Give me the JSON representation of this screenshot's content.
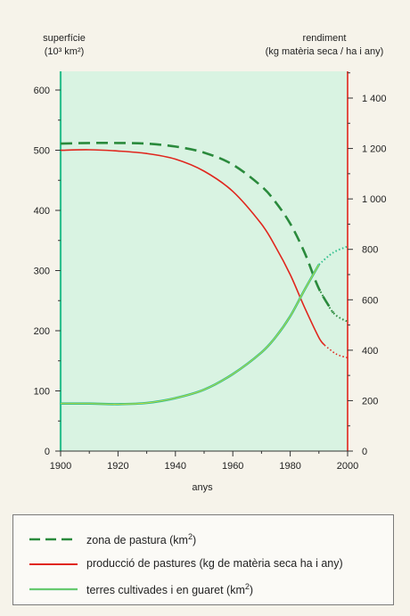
{
  "chart_data": {
    "type": "line",
    "xlabel": "anys",
    "ylabel_left": [
      "superfície",
      "(10³ km²)"
    ],
    "ylabel_right": [
      "rendiment",
      "(kg matèria seca / ha i any)"
    ],
    "xlim": [
      1900,
      2000
    ],
    "ylim_left": [
      0,
      600
    ],
    "ylim_right": [
      0,
      1500
    ],
    "x_ticks": [
      "1900",
      "1920",
      "1940",
      "1960",
      "1980",
      "2000"
    ],
    "y_left_ticks": [
      "0",
      "100",
      "200",
      "300",
      "400",
      "500",
      "600"
    ],
    "y_right_ticks": [
      "0",
      "200",
      "400",
      "600",
      "800",
      "1 000",
      "1 200",
      "1 400"
    ],
    "series": [
      {
        "name": "zona de pastura (km²)",
        "axis": "left",
        "style": "dashed",
        "color": "#2a8a3c",
        "points": [
          [
            1900,
            511
          ],
          [
            1910,
            512
          ],
          [
            1920,
            512
          ],
          [
            1930,
            511
          ],
          [
            1940,
            506
          ],
          [
            1950,
            496
          ],
          [
            1960,
            476
          ],
          [
            1970,
            440
          ],
          [
            1975,
            413
          ],
          [
            1980,
            378
          ],
          [
            1985,
            330
          ],
          [
            1990,
            270
          ],
          [
            1995,
            230
          ]
        ],
        "projected": [
          [
            1990,
            270
          ],
          [
            1995,
            230
          ],
          [
            2000,
            215
          ]
        ]
      },
      {
        "name": "producció de pastures (kg de matèria seca ha i any)",
        "axis": "right",
        "style": "solid",
        "color": "#e0261d",
        "points": [
          [
            1900,
            1193
          ],
          [
            1910,
            1195
          ],
          [
            1920,
            1190
          ],
          [
            1930,
            1180
          ],
          [
            1940,
            1158
          ],
          [
            1950,
            1110
          ],
          [
            1960,
            1030
          ],
          [
            1970,
            900
          ],
          [
            1975,
            808
          ],
          [
            1980,
            700
          ],
          [
            1985,
            570
          ],
          [
            1990,
            450
          ],
          [
            1992,
            420
          ]
        ],
        "projected": [
          [
            1992,
            420
          ],
          [
            1996,
            385
          ],
          [
            2000,
            370
          ]
        ]
      },
      {
        "name": "terres cultivades i en guaret (km²)",
        "axis": "left",
        "style": "solid",
        "color": "#2fbf8e",
        "points": [
          [
            1900,
            79
          ],
          [
            1910,
            79
          ],
          [
            1920,
            78
          ],
          [
            1930,
            80
          ],
          [
            1940,
            88
          ],
          [
            1950,
            102
          ],
          [
            1960,
            128
          ],
          [
            1970,
            164
          ],
          [
            1975,
            190
          ],
          [
            1980,
            224
          ],
          [
            1985,
            268
          ],
          [
            1990,
            310
          ]
        ],
        "projected": [
          [
            1990,
            310
          ],
          [
            1995,
            330
          ],
          [
            2000,
            340
          ]
        ]
      }
    ],
    "legend_position": "bottom",
    "grid": false
  },
  "legend": [
    {
      "label": "zona de pastura (km",
      "sup": "2",
      "after": ")"
    },
    {
      "label": "producció de pastures (kg de matèria seca ha i any)",
      "sup": "",
      "after": ""
    },
    {
      "label": "terres cultivades i en guaret (km",
      "sup": "2",
      "after": ")"
    }
  ],
  "colors": {
    "plot_bg": "#d9f3e2",
    "left_axis": "#2fbf8e",
    "right_axis": "#e0261d"
  }
}
